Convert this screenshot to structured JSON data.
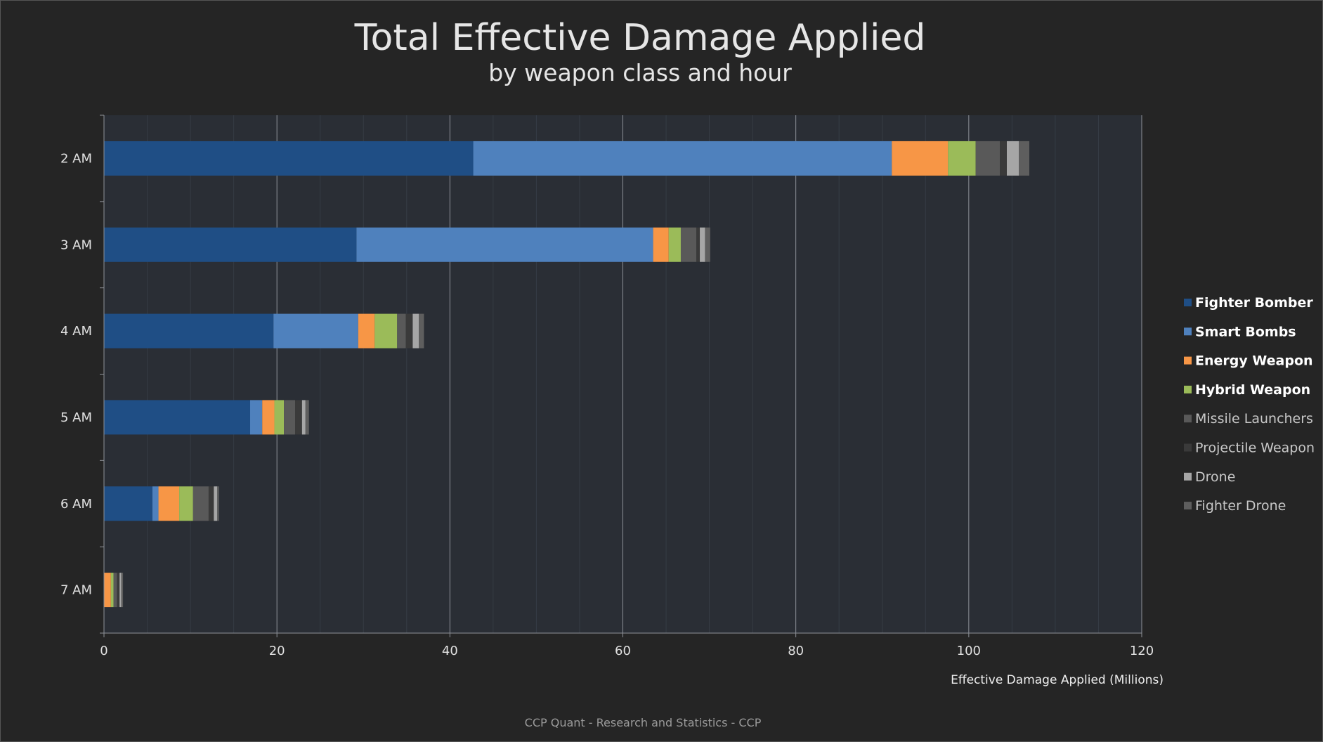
{
  "chart_data": {
    "type": "bar",
    "orientation": "horizontal",
    "stacked": true,
    "title": "Total Effective Damage Applied",
    "subtitle": "by weapon class and hour",
    "xlabel": "Effective Damage Applied (Millions)",
    "ylabel": "",
    "xlim": [
      0,
      120
    ],
    "x_ticks": [
      0,
      20,
      40,
      60,
      80,
      100,
      120
    ],
    "grid": "vertical",
    "legend_position": "right",
    "categories": [
      "2 AM",
      "3 AM",
      "4 AM",
      "5 AM",
      "6 AM",
      "7 AM"
    ],
    "series": [
      {
        "name": "Fighter Bomber",
        "color": "#1f4e85",
        "legend_bold": true,
        "values": [
          42.7,
          29.2,
          19.6,
          16.9,
          5.6,
          0.0
        ]
      },
      {
        "name": "Smart Bombs",
        "color": "#4f81bd",
        "legend_bold": true,
        "values": [
          48.4,
          34.3,
          9.8,
          1.4,
          0.7,
          0.0
        ]
      },
      {
        "name": "Energy Weapon",
        "color": "#f79646",
        "legend_bold": true,
        "values": [
          6.5,
          1.8,
          1.9,
          1.4,
          2.4,
          0.8
        ]
      },
      {
        "name": "Hybrid Weapon",
        "color": "#9bbb59",
        "legend_bold": true,
        "values": [
          3.2,
          1.4,
          2.6,
          1.1,
          1.6,
          0.3
        ]
      },
      {
        "name": "Missile Launchers",
        "color": "#595959",
        "legend_bold": false,
        "values": [
          2.8,
          1.8,
          1.0,
          1.3,
          1.8,
          0.4
        ]
      },
      {
        "name": "Projectile Weapon",
        "color": "#3a3a3a",
        "legend_bold": false,
        "values": [
          0.8,
          0.4,
          0.8,
          0.8,
          0.6,
          0.3
        ]
      },
      {
        "name": "Drone",
        "color": "#a6a6a6",
        "legend_bold": false,
        "values": [
          1.4,
          0.6,
          0.7,
          0.4,
          0.4,
          0.2
        ]
      },
      {
        "name": "Fighter Drone",
        "color": "#5e5e5e",
        "legend_bold": false,
        "values": [
          1.2,
          0.6,
          0.6,
          0.4,
          0.2,
          0.2
        ]
      }
    ]
  },
  "footer": "CCP Quant - Research and Statistics - CCP"
}
